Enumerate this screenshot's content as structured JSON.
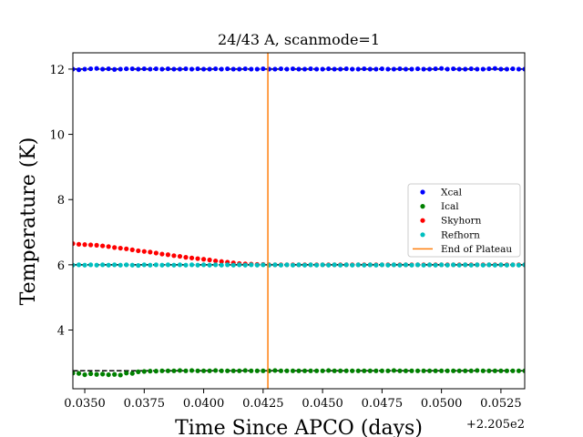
{
  "chart_data": {
    "type": "scatter",
    "title": "24/43 A, scanmode=1",
    "xlabel": "Time Since APCO (days)",
    "ylabel": "Temperature (K)",
    "x_offset_label": "+2.205e2",
    "x_tick_labels": [
      "0.0350",
      "0.0375",
      "0.0400",
      "0.0425",
      "0.0450",
      "0.0475",
      "0.0500",
      "0.0525"
    ],
    "x_ticks": [
      0.035,
      0.0375,
      0.04,
      0.0425,
      0.045,
      0.0475,
      0.05,
      0.0525
    ],
    "y_tick_labels": [
      "4",
      "6",
      "8",
      "10",
      "12"
    ],
    "y_ticks": [
      4,
      6,
      8,
      10,
      12
    ],
    "xlim": [
      0.0345,
      0.0535
    ],
    "ylim": [
      2.2,
      12.5
    ],
    "grid": false,
    "legend_position": "center-right",
    "x": [
      0.0345,
      0.03475,
      0.035,
      0.03525,
      0.0355,
      0.03575,
      0.036,
      0.03625,
      0.0365,
      0.03675,
      0.037,
      0.03725,
      0.0375,
      0.03775,
      0.038,
      0.03825,
      0.0385,
      0.03875,
      0.039,
      0.03925,
      0.0395,
      0.03975,
      0.04,
      0.04025,
      0.0405,
      0.04075,
      0.041,
      0.04125,
      0.0415,
      0.04175,
      0.042,
      0.04225,
      0.0425,
      0.04275,
      0.043,
      0.04325,
      0.0435,
      0.04375,
      0.044,
      0.04425,
      0.0445,
      0.04475,
      0.045,
      0.04525,
      0.0455,
      0.04575,
      0.046,
      0.04625,
      0.0465,
      0.04675,
      0.047,
      0.04725,
      0.0475,
      0.04775,
      0.048,
      0.04825,
      0.0485,
      0.04875,
      0.049,
      0.04925,
      0.0495,
      0.04975,
      0.05,
      0.05025,
      0.0505,
      0.05075,
      0.051,
      0.05125,
      0.0515,
      0.05175,
      0.052,
      0.05225,
      0.0525,
      0.05275,
      0.053,
      0.05325,
      0.0535
    ],
    "series": [
      {
        "name": "Xcal",
        "color": "#0000ff",
        "values": [
          12.0,
          11.98,
          12.0,
          12.01,
          12.02,
          12.0,
          12.01,
          11.99,
          12.0,
          12.01,
          12.01,
          12.0,
          12.01,
          12.0,
          12.01,
          12.0,
          12.01,
          12.0,
          12.0,
          12.01,
          12.0,
          12.01,
          12.0,
          12.0,
          12.01,
          12.0,
          12.01,
          12.0,
          12.0,
          12.01,
          12.0,
          12.0,
          12.01,
          12.0,
          12.0,
          12.01,
          12.0,
          12.01,
          12.0,
          12.0,
          12.01,
          12.0,
          12.0,
          12.01,
          12.0,
          12.0,
          12.01,
          12.0,
          12.0,
          12.01,
          12.0,
          12.0,
          12.01,
          12.0,
          12.0,
          12.01,
          12.0,
          12.0,
          12.01,
          12.0,
          12.0,
          12.01,
          12.02,
          12.0,
          12.01,
          12.0,
          12.0,
          12.01,
          12.0,
          12.0,
          12.01,
          12.02,
          12.0,
          12.0,
          12.01,
          12.0,
          12.0
        ]
      },
      {
        "name": "Ical",
        "color": "#008000",
        "values": [
          2.68,
          2.67,
          2.63,
          2.66,
          2.64,
          2.65,
          2.63,
          2.64,
          2.62,
          2.68,
          2.67,
          2.72,
          2.73,
          2.74,
          2.74,
          2.75,
          2.75,
          2.75,
          2.76,
          2.75,
          2.76,
          2.75,
          2.75,
          2.75,
          2.76,
          2.75,
          2.75,
          2.75,
          2.75,
          2.76,
          2.75,
          2.75,
          2.75,
          2.75,
          2.76,
          2.75,
          2.75,
          2.75,
          2.75,
          2.75,
          2.75,
          2.75,
          2.75,
          2.76,
          2.75,
          2.75,
          2.75,
          2.75,
          2.75,
          2.75,
          2.75,
          2.75,
          2.75,
          2.75,
          2.76,
          2.75,
          2.75,
          2.75,
          2.75,
          2.75,
          2.75,
          2.75,
          2.75,
          2.75,
          2.75,
          2.75,
          2.75,
          2.75,
          2.76,
          2.75,
          2.75,
          2.75,
          2.75,
          2.75,
          2.75,
          2.75,
          2.75
        ]
      },
      {
        "name": "Skyhorn",
        "color": "#ff0000",
        "values": [
          6.65,
          6.63,
          6.62,
          6.61,
          6.6,
          6.58,
          6.56,
          6.53,
          6.51,
          6.49,
          6.46,
          6.43,
          6.41,
          6.39,
          6.36,
          6.33,
          6.31,
          6.28,
          6.26,
          6.23,
          6.21,
          6.19,
          6.17,
          6.15,
          6.12,
          6.1,
          6.08,
          6.06,
          6.04,
          6.03,
          6.02,
          6.01,
          6.01,
          6.0,
          6.0,
          6.0,
          6.0,
          6.0,
          6.0,
          6.0,
          6.0,
          6.0,
          6.0,
          6.0,
          6.0,
          6.0,
          6.0,
          6.0,
          6.0,
          6.0,
          6.0,
          6.0,
          6.0,
          6.0,
          6.0,
          6.0,
          6.0,
          6.0,
          6.0,
          6.0,
          6.0,
          6.0,
          6.0,
          6.0,
          6.0,
          6.0,
          6.0,
          6.0,
          6.0,
          6.0,
          6.0,
          6.0,
          6.0,
          6.0,
          6.0,
          6.0,
          6.0
        ]
      },
      {
        "name": "Refhorn",
        "color": "#00bfbf",
        "values": [
          5.99,
          6.0,
          5.99,
          6.0,
          5.99,
          6.0,
          5.99,
          6.0,
          5.99,
          6.0,
          5.99,
          5.98,
          6.0,
          5.99,
          6.0,
          5.99,
          6.0,
          5.99,
          6.0,
          5.99,
          6.0,
          5.99,
          6.0,
          5.99,
          6.0,
          5.99,
          6.0,
          5.99,
          6.0,
          5.99,
          6.0,
          5.99,
          6.0,
          5.99,
          6.0,
          5.99,
          6.0,
          5.99,
          6.0,
          5.99,
          6.0,
          5.99,
          6.0,
          5.99,
          6.0,
          5.99,
          6.0,
          5.99,
          6.0,
          5.99,
          6.0,
          5.99,
          6.0,
          5.99,
          6.0,
          5.99,
          6.0,
          5.99,
          6.0,
          5.99,
          6.0,
          5.99,
          6.0,
          5.99,
          6.0,
          5.99,
          6.0,
          5.99,
          6.0,
          5.99,
          6.0,
          5.99,
          6.0,
          5.99,
          6.0,
          5.99,
          6.0
        ]
      }
    ],
    "reference_lines": [
      {
        "orientation": "horizontal",
        "y": 12.0,
        "style": "dashed",
        "color": "#000000"
      },
      {
        "orientation": "horizontal",
        "y": 6.0,
        "style": "dashed",
        "color": "#000000"
      },
      {
        "orientation": "horizontal",
        "y": 2.75,
        "style": "dashed",
        "color": "#000000"
      }
    ],
    "vertical_line": {
      "name": "End of Plateau",
      "x": 0.0427,
      "color": "#ff7f0e"
    },
    "legend": [
      "Xcal",
      "Ical",
      "Skyhorn",
      "Refhorn",
      "End of Plateau"
    ]
  }
}
